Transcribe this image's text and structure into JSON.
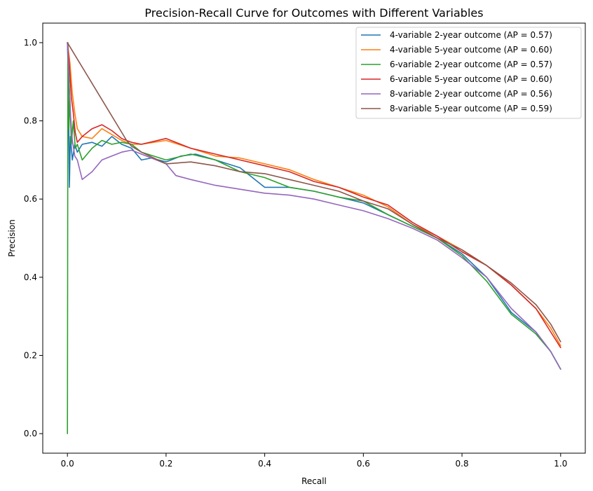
{
  "chart_data": {
    "type": "line",
    "title": "Precision-Recall Curve for Outcomes with Different Variables",
    "xlabel": "Recall",
    "ylabel": "Precision",
    "xlim": [
      -0.05,
      1.05
    ],
    "ylim": [
      -0.05,
      1.05
    ],
    "xticks": [
      0.0,
      0.2,
      0.4,
      0.6,
      0.8,
      1.0
    ],
    "yticks": [
      0.0,
      0.2,
      0.4,
      0.6,
      0.8,
      1.0
    ],
    "xtick_labels": [
      "0.0",
      "0.2",
      "0.4",
      "0.6",
      "0.8",
      "1.0"
    ],
    "ytick_labels": [
      "0.0",
      "0.2",
      "0.4",
      "0.6",
      "0.8",
      "1.0"
    ],
    "grid": false,
    "legend_position": "top-right",
    "series": [
      {
        "name": "4-variable 2-year outcome (AP = 0.57)",
        "color": "#1f77b4",
        "points": [
          [
            0.0,
            1.0
          ],
          [
            0.002,
            0.9
          ],
          [
            0.004,
            0.63
          ],
          [
            0.006,
            0.76
          ],
          [
            0.01,
            0.7
          ],
          [
            0.015,
            0.74
          ],
          [
            0.02,
            0.72
          ],
          [
            0.03,
            0.74
          ],
          [
            0.05,
            0.745
          ],
          [
            0.07,
            0.735
          ],
          [
            0.09,
            0.76
          ],
          [
            0.11,
            0.74
          ],
          [
            0.13,
            0.73
          ],
          [
            0.15,
            0.7
          ],
          [
            0.17,
            0.705
          ],
          [
            0.2,
            0.695
          ],
          [
            0.23,
            0.71
          ],
          [
            0.26,
            0.715
          ],
          [
            0.3,
            0.7
          ],
          [
            0.35,
            0.68
          ],
          [
            0.4,
            0.63
          ],
          [
            0.45,
            0.63
          ],
          [
            0.5,
            0.62
          ],
          [
            0.55,
            0.605
          ],
          [
            0.6,
            0.59
          ],
          [
            0.65,
            0.56
          ],
          [
            0.7,
            0.53
          ],
          [
            0.75,
            0.5
          ],
          [
            0.8,
            0.46
          ],
          [
            0.85,
            0.4
          ],
          [
            0.9,
            0.31
          ],
          [
            0.95,
            0.26
          ],
          [
            0.98,
            0.21
          ],
          [
            1.0,
            0.165
          ]
        ]
      },
      {
        "name": "4-variable 5-year outcome (AP = 0.60)",
        "color": "#ff7f0e",
        "points": [
          [
            0.0,
            1.0
          ],
          [
            0.005,
            0.95
          ],
          [
            0.01,
            0.87
          ],
          [
            0.015,
            0.82
          ],
          [
            0.02,
            0.78
          ],
          [
            0.03,
            0.76
          ],
          [
            0.05,
            0.755
          ],
          [
            0.07,
            0.78
          ],
          [
            0.09,
            0.765
          ],
          [
            0.11,
            0.75
          ],
          [
            0.13,
            0.74
          ],
          [
            0.15,
            0.74
          ],
          [
            0.2,
            0.75
          ],
          [
            0.25,
            0.73
          ],
          [
            0.3,
            0.71
          ],
          [
            0.35,
            0.705
          ],
          [
            0.4,
            0.69
          ],
          [
            0.45,
            0.675
          ],
          [
            0.5,
            0.65
          ],
          [
            0.55,
            0.63
          ],
          [
            0.6,
            0.61
          ],
          [
            0.65,
            0.58
          ],
          [
            0.7,
            0.535
          ],
          [
            0.75,
            0.505
          ],
          [
            0.8,
            0.47
          ],
          [
            0.85,
            0.43
          ],
          [
            0.9,
            0.38
          ],
          [
            0.95,
            0.32
          ],
          [
            0.98,
            0.27
          ],
          [
            1.0,
            0.225
          ]
        ]
      },
      {
        "name": "6-variable 2-year outcome (AP = 0.57)",
        "color": "#2ca02c",
        "points": [
          [
            0.0,
            0.0
          ],
          [
            0.001,
            1.0
          ],
          [
            0.003,
            0.78
          ],
          [
            0.005,
            0.86
          ],
          [
            0.008,
            0.74
          ],
          [
            0.012,
            0.8
          ],
          [
            0.016,
            0.73
          ],
          [
            0.02,
            0.74
          ],
          [
            0.03,
            0.7
          ],
          [
            0.05,
            0.73
          ],
          [
            0.07,
            0.75
          ],
          [
            0.09,
            0.74
          ],
          [
            0.11,
            0.745
          ],
          [
            0.13,
            0.74
          ],
          [
            0.15,
            0.72
          ],
          [
            0.2,
            0.7
          ],
          [
            0.25,
            0.715
          ],
          [
            0.3,
            0.7
          ],
          [
            0.35,
            0.67
          ],
          [
            0.4,
            0.655
          ],
          [
            0.45,
            0.63
          ],
          [
            0.5,
            0.62
          ],
          [
            0.55,
            0.605
          ],
          [
            0.6,
            0.595
          ],
          [
            0.65,
            0.56
          ],
          [
            0.7,
            0.53
          ],
          [
            0.75,
            0.5
          ],
          [
            0.8,
            0.455
          ],
          [
            0.85,
            0.39
          ],
          [
            0.9,
            0.305
          ],
          [
            0.95,
            0.255
          ],
          [
            0.98,
            0.21
          ],
          [
            1.0,
            0.165
          ]
        ]
      },
      {
        "name": "6-variable 5-year outcome (AP = 0.60)",
        "color": "#d62728",
        "points": [
          [
            0.0,
            1.0
          ],
          [
            0.004,
            0.94
          ],
          [
            0.008,
            0.86
          ],
          [
            0.012,
            0.82
          ],
          [
            0.016,
            0.77
          ],
          [
            0.02,
            0.745
          ],
          [
            0.03,
            0.76
          ],
          [
            0.05,
            0.78
          ],
          [
            0.07,
            0.79
          ],
          [
            0.09,
            0.775
          ],
          [
            0.11,
            0.755
          ],
          [
            0.13,
            0.745
          ],
          [
            0.15,
            0.74
          ],
          [
            0.2,
            0.755
          ],
          [
            0.25,
            0.73
          ],
          [
            0.3,
            0.715
          ],
          [
            0.35,
            0.7
          ],
          [
            0.4,
            0.685
          ],
          [
            0.45,
            0.67
          ],
          [
            0.5,
            0.645
          ],
          [
            0.55,
            0.63
          ],
          [
            0.6,
            0.605
          ],
          [
            0.65,
            0.585
          ],
          [
            0.7,
            0.54
          ],
          [
            0.75,
            0.505
          ],
          [
            0.8,
            0.465
          ],
          [
            0.85,
            0.43
          ],
          [
            0.9,
            0.38
          ],
          [
            0.95,
            0.32
          ],
          [
            0.98,
            0.26
          ],
          [
            1.0,
            0.22
          ]
        ]
      },
      {
        "name": "8-variable 2-year outcome (AP = 0.56)",
        "color": "#9467bd",
        "points": [
          [
            0.0,
            1.0
          ],
          [
            0.003,
            0.92
          ],
          [
            0.006,
            0.82
          ],
          [
            0.01,
            0.75
          ],
          [
            0.015,
            0.71
          ],
          [
            0.02,
            0.7
          ],
          [
            0.03,
            0.65
          ],
          [
            0.05,
            0.67
          ],
          [
            0.07,
            0.7
          ],
          [
            0.09,
            0.71
          ],
          [
            0.11,
            0.72
          ],
          [
            0.13,
            0.725
          ],
          [
            0.15,
            0.715
          ],
          [
            0.2,
            0.69
          ],
          [
            0.22,
            0.66
          ],
          [
            0.25,
            0.65
          ],
          [
            0.3,
            0.635
          ],
          [
            0.35,
            0.625
          ],
          [
            0.4,
            0.615
          ],
          [
            0.45,
            0.61
          ],
          [
            0.5,
            0.6
          ],
          [
            0.55,
            0.585
          ],
          [
            0.6,
            0.57
          ],
          [
            0.65,
            0.55
          ],
          [
            0.7,
            0.525
          ],
          [
            0.75,
            0.495
          ],
          [
            0.8,
            0.45
          ],
          [
            0.85,
            0.4
          ],
          [
            0.9,
            0.32
          ],
          [
            0.95,
            0.26
          ],
          [
            0.98,
            0.21
          ],
          [
            1.0,
            0.165
          ]
        ]
      },
      {
        "name": "8-variable 5-year outcome (AP = 0.59)",
        "color": "#8c564b",
        "points": [
          [
            0.0,
            1.0
          ],
          [
            0.12,
            0.75
          ],
          [
            0.13,
            0.735
          ],
          [
            0.15,
            0.72
          ],
          [
            0.2,
            0.69
          ],
          [
            0.25,
            0.695
          ],
          [
            0.3,
            0.685
          ],
          [
            0.35,
            0.67
          ],
          [
            0.4,
            0.665
          ],
          [
            0.45,
            0.65
          ],
          [
            0.5,
            0.635
          ],
          [
            0.55,
            0.62
          ],
          [
            0.6,
            0.595
          ],
          [
            0.65,
            0.575
          ],
          [
            0.7,
            0.535
          ],
          [
            0.75,
            0.5
          ],
          [
            0.8,
            0.47
          ],
          [
            0.85,
            0.43
          ],
          [
            0.9,
            0.385
          ],
          [
            0.95,
            0.33
          ],
          [
            0.98,
            0.28
          ],
          [
            1.0,
            0.235
          ]
        ]
      }
    ]
  }
}
